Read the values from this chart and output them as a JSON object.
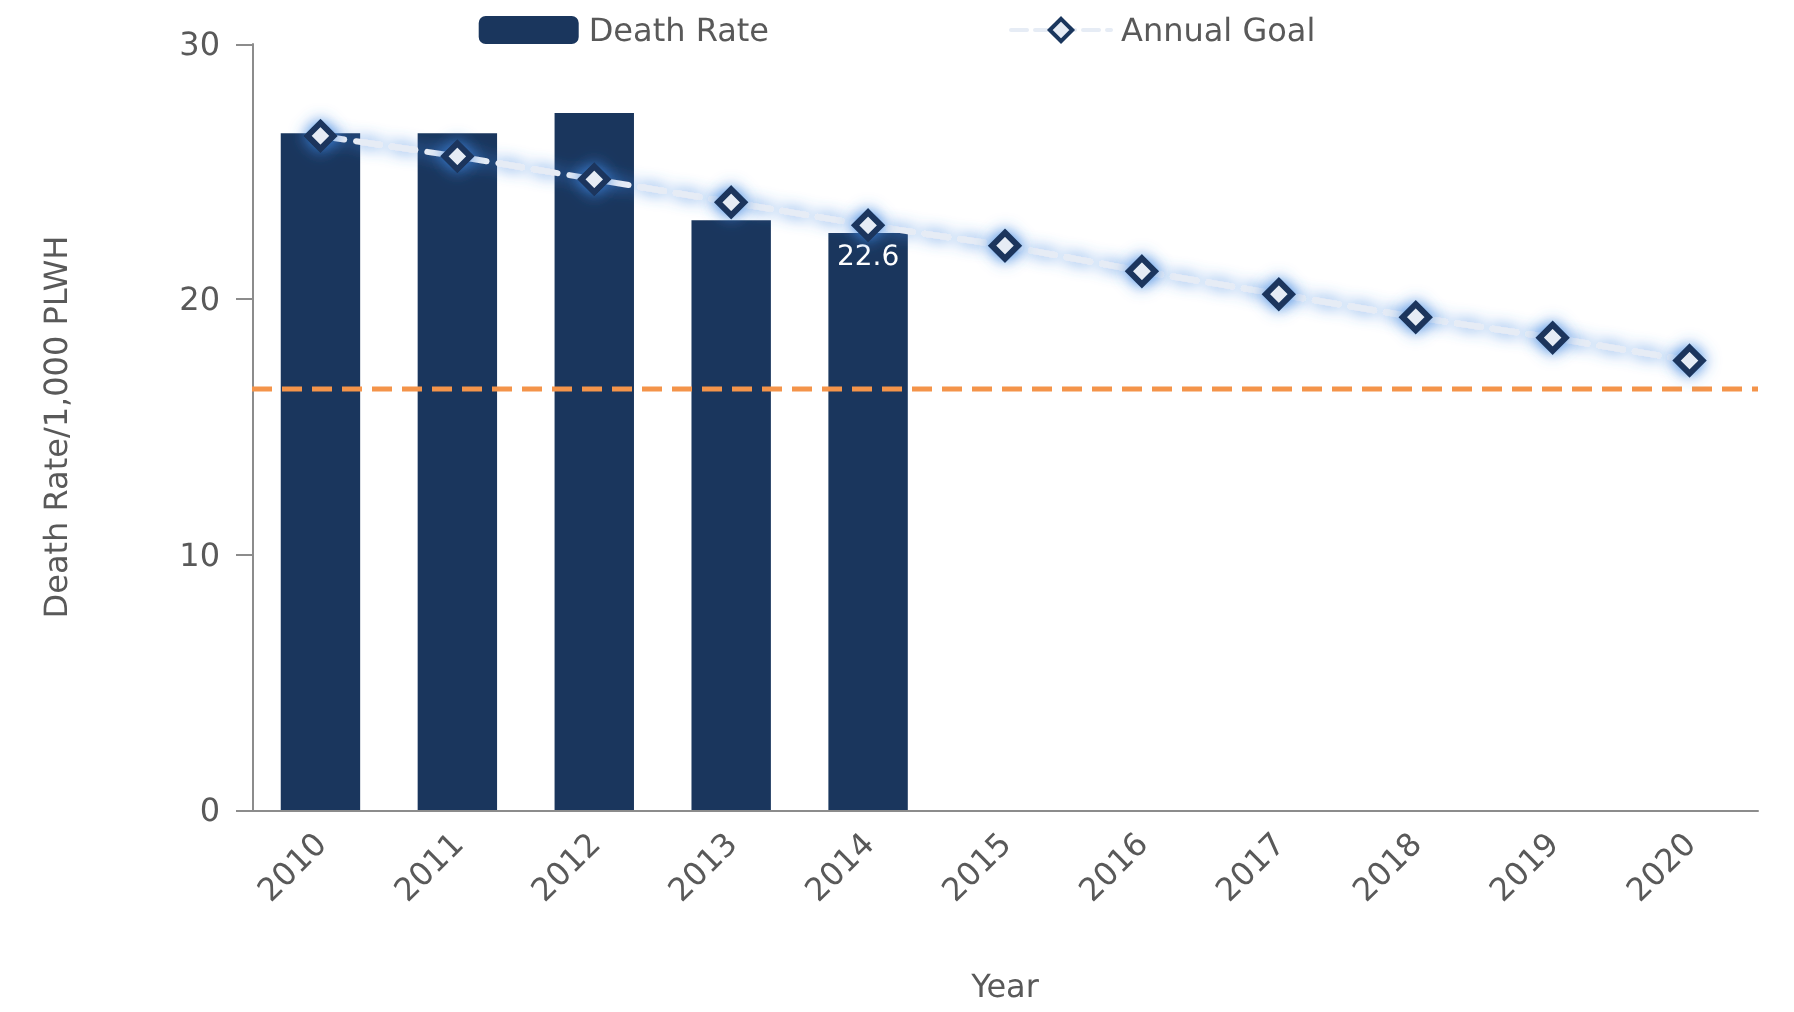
{
  "chart_data": {
    "type": "bar",
    "xlabel": "Year",
    "ylabel": "Death Rate/1,000 PLWH",
    "categories": [
      "2010",
      "2011",
      "2012",
      "2013",
      "2014",
      "2015",
      "2016",
      "2017",
      "2018",
      "2019",
      "2020"
    ],
    "series": [
      {
        "name": "Death Rate",
        "color": "#1a365d",
        "values": [
          26.5,
          26.5,
          27.3,
          23.1,
          22.6,
          null,
          null,
          null,
          null,
          null,
          null
        ],
        "value_labels": [
          null,
          null,
          null,
          null,
          "22.6",
          null,
          null,
          null,
          null,
          null,
          null
        ]
      },
      {
        "name": "Annual Goal",
        "type": "line",
        "color": "#e6ecf5",
        "marker": "diamond",
        "line_style": "dashed",
        "values": [
          26.4,
          25.6,
          24.7,
          23.8,
          22.9,
          22.1,
          21.1,
          20.2,
          19.3,
          18.5,
          17.6
        ]
      }
    ],
    "ylim": [
      0,
      30
    ],
    "yticks": [
      0,
      10,
      20,
      30
    ],
    "grid": false,
    "legend": "top",
    "ref_lines": [
      {
        "axis": "y",
        "value": 16.5,
        "label": null,
        "color": "#f4944a",
        "line_style": "dashed"
      }
    ]
  }
}
